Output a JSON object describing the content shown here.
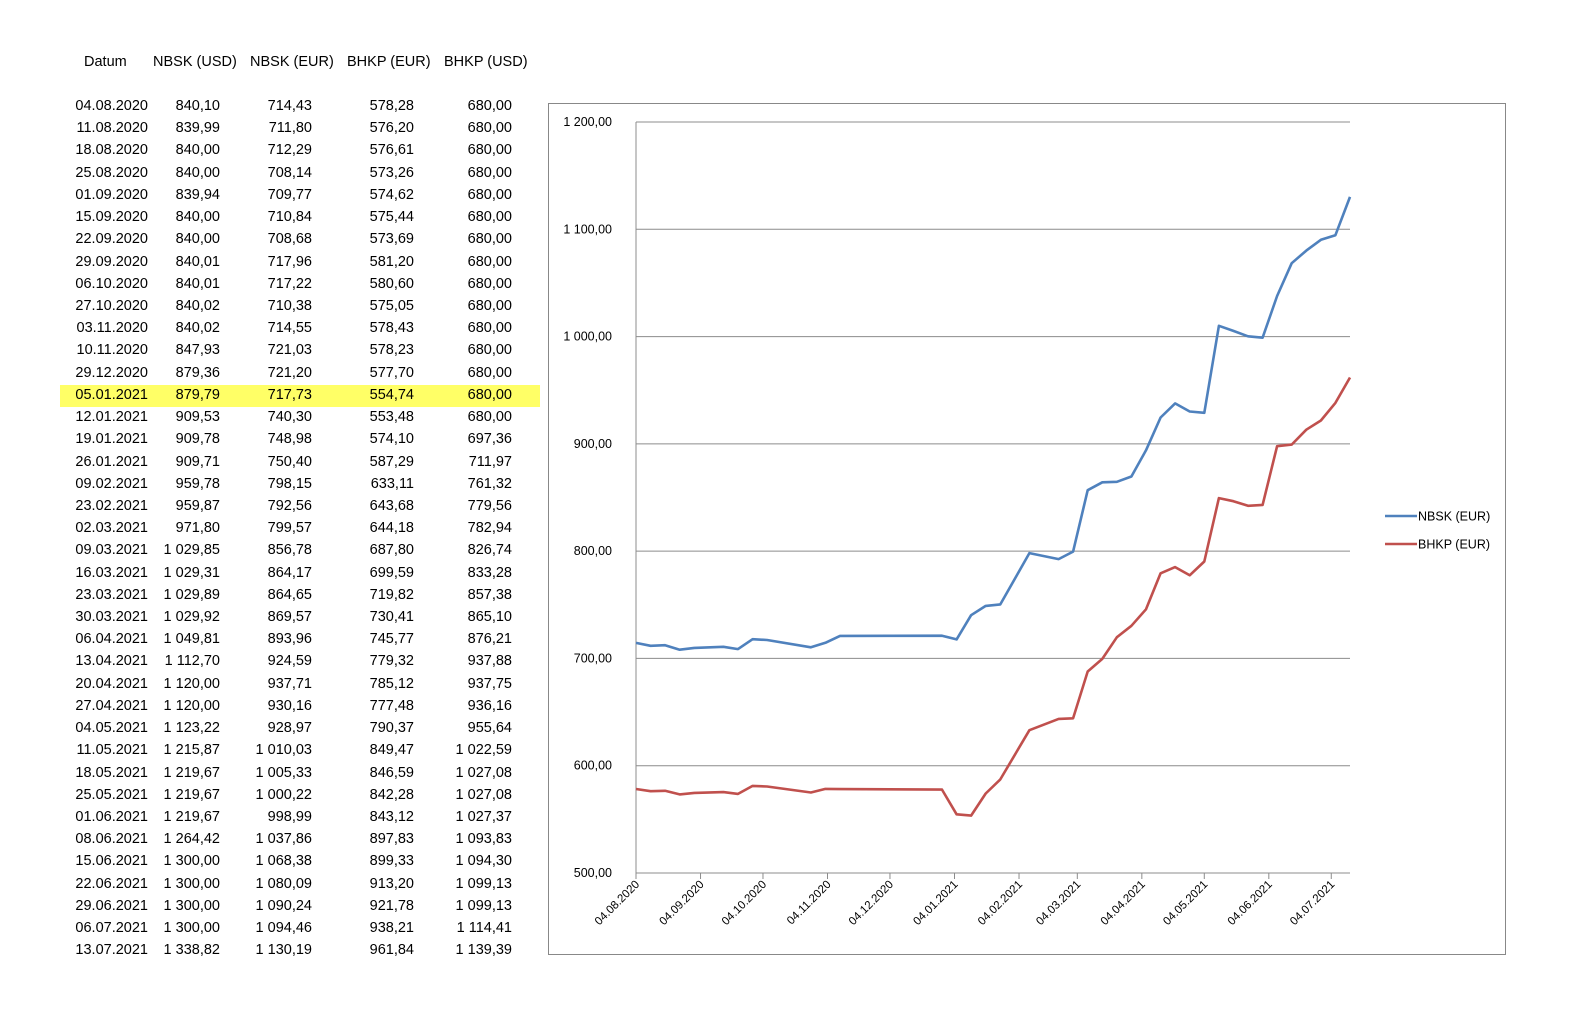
{
  "table": {
    "headers": [
      "Datum",
      "NBSK (USD)",
      "NBSK (EUR)",
      "BHKP (EUR)",
      "BHKP (USD)"
    ],
    "highlight_row": "05.01.2021",
    "rows": [
      [
        "04.08.2020",
        "840,10",
        "714,43",
        "578,28",
        "680,00"
      ],
      [
        "11.08.2020",
        "839,99",
        "711,80",
        "576,20",
        "680,00"
      ],
      [
        "18.08.2020",
        "840,00",
        "712,29",
        "576,61",
        "680,00"
      ],
      [
        "25.08.2020",
        "840,00",
        "708,14",
        "573,26",
        "680,00"
      ],
      [
        "01.09.2020",
        "839,94",
        "709,77",
        "574,62",
        "680,00"
      ],
      [
        "15.09.2020",
        "840,00",
        "710,84",
        "575,44",
        "680,00"
      ],
      [
        "22.09.2020",
        "840,00",
        "708,68",
        "573,69",
        "680,00"
      ],
      [
        "29.09.2020",
        "840,01",
        "717,96",
        "581,20",
        "680,00"
      ],
      [
        "06.10.2020",
        "840,01",
        "717,22",
        "580,60",
        "680,00"
      ],
      [
        "27.10.2020",
        "840,02",
        "710,38",
        "575,05",
        "680,00"
      ],
      [
        "03.11.2020",
        "840,02",
        "714,55",
        "578,43",
        "680,00"
      ],
      [
        "10.11.2020",
        "847,93",
        "721,03",
        "578,23",
        "680,00"
      ],
      [
        "29.12.2020",
        "879,36",
        "721,20",
        "577,70",
        "680,00"
      ],
      [
        "05.01.2021",
        "879,79",
        "717,73",
        "554,74",
        "680,00"
      ],
      [
        "12.01.2021",
        "909,53",
        "740,30",
        "553,48",
        "680,00"
      ],
      [
        "19.01.2021",
        "909,78",
        "748,98",
        "574,10",
        "697,36"
      ],
      [
        "26.01.2021",
        "909,71",
        "750,40",
        "587,29",
        "711,97"
      ],
      [
        "09.02.2021",
        "959,78",
        "798,15",
        "633,11",
        "761,32"
      ],
      [
        "23.02.2021",
        "959,87",
        "792,56",
        "643,68",
        "779,56"
      ],
      [
        "02.03.2021",
        "971,80",
        "799,57",
        "644,18",
        "782,94"
      ],
      [
        "09.03.2021",
        "1 029,85",
        "856,78",
        "687,80",
        "826,74"
      ],
      [
        "16.03.2021",
        "1 029,31",
        "864,17",
        "699,59",
        "833,28"
      ],
      [
        "23.03.2021",
        "1 029,89",
        "864,65",
        "719,82",
        "857,38"
      ],
      [
        "30.03.2021",
        "1 029,92",
        "869,57",
        "730,41",
        "865,10"
      ],
      [
        "06.04.2021",
        "1 049,81",
        "893,96",
        "745,77",
        "876,21"
      ],
      [
        "13.04.2021",
        "1 112,70",
        "924,59",
        "779,32",
        "937,88"
      ],
      [
        "20.04.2021",
        "1 120,00",
        "937,71",
        "785,12",
        "937,75"
      ],
      [
        "27.04.2021",
        "1 120,00",
        "930,16",
        "777,48",
        "936,16"
      ],
      [
        "04.05.2021",
        "1 123,22",
        "928,97",
        "790,37",
        "955,64"
      ],
      [
        "11.05.2021",
        "1 215,87",
        "1 010,03",
        "849,47",
        "1 022,59"
      ],
      [
        "18.05.2021",
        "1 219,67",
        "1 005,33",
        "846,59",
        "1 027,08"
      ],
      [
        "25.05.2021",
        "1 219,67",
        "1 000,22",
        "842,28",
        "1 027,08"
      ],
      [
        "01.06.2021",
        "1 219,67",
        "998,99",
        "843,12",
        "1 027,37"
      ],
      [
        "08.06.2021",
        "1 264,42",
        "1 037,86",
        "897,83",
        "1 093,83"
      ],
      [
        "15.06.2021",
        "1 300,00",
        "1 068,38",
        "899,33",
        "1 094,30"
      ],
      [
        "22.06.2021",
        "1 300,00",
        "1 080,09",
        "913,20",
        "1 099,13"
      ],
      [
        "29.06.2021",
        "1 300,00",
        "1 090,24",
        "921,78",
        "1 099,13"
      ],
      [
        "06.07.2021",
        "1 300,00",
        "1 094,46",
        "938,21",
        "1 114,41"
      ],
      [
        "13.07.2021",
        "1 338,82",
        "1 130,19",
        "961,84",
        "1 139,39"
      ]
    ]
  },
  "chart_data": {
    "type": "line",
    "x_type": "date",
    "title": "",
    "xlabel": "",
    "ylabel": "",
    "ylim": [
      500,
      1200
    ],
    "yticks": [
      "500,00",
      "600,00",
      "700,00",
      "800,00",
      "900,00",
      "1 000,00",
      "1 100,00",
      "1 200,00"
    ],
    "xlim": [
      "2020-08-04",
      "2021-07-13"
    ],
    "xticks": [
      "04.08.2020",
      "04.09.2020",
      "04.10.2020",
      "04.11.2020",
      "04.12.2020",
      "04.01.2021",
      "04.02.2021",
      "04.03.2021",
      "04.04.2021",
      "04.05.2021",
      "04.06.2021",
      "04.07.2021"
    ],
    "grid": "horizontal",
    "legend": "right",
    "x": [
      "2020-08-04",
      "2020-08-11",
      "2020-08-18",
      "2020-08-25",
      "2020-09-01",
      "2020-09-15",
      "2020-09-22",
      "2020-09-29",
      "2020-10-06",
      "2020-10-27",
      "2020-11-03",
      "2020-11-10",
      "2020-12-29",
      "2021-01-05",
      "2021-01-12",
      "2021-01-19",
      "2021-01-26",
      "2021-02-09",
      "2021-02-23",
      "2021-03-02",
      "2021-03-09",
      "2021-03-16",
      "2021-03-23",
      "2021-03-30",
      "2021-04-06",
      "2021-04-13",
      "2021-04-20",
      "2021-04-27",
      "2021-05-04",
      "2021-05-11",
      "2021-05-18",
      "2021-05-25",
      "2021-06-01",
      "2021-06-08",
      "2021-06-15",
      "2021-06-22",
      "2021-06-29",
      "2021-07-06",
      "2021-07-13"
    ],
    "series": [
      {
        "name": "NBSK (EUR)",
        "color": "#4f81bd",
        "values": [
          714.43,
          711.8,
          712.29,
          708.14,
          709.77,
          710.84,
          708.68,
          717.96,
          717.22,
          710.38,
          714.55,
          721.03,
          721.2,
          717.73,
          740.3,
          748.98,
          750.4,
          798.15,
          792.56,
          799.57,
          856.78,
          864.17,
          864.65,
          869.57,
          893.96,
          924.59,
          937.71,
          930.16,
          928.97,
          1010.03,
          1005.33,
          1000.22,
          998.99,
          1037.86,
          1068.38,
          1080.09,
          1090.24,
          1094.46,
          1130.19
        ]
      },
      {
        "name": "BHKP (EUR)",
        "color": "#c0504d",
        "values": [
          578.28,
          576.2,
          576.61,
          573.26,
          574.62,
          575.44,
          573.69,
          581.2,
          580.6,
          575.05,
          578.43,
          578.23,
          577.7,
          554.74,
          553.48,
          574.1,
          587.29,
          633.11,
          643.68,
          644.18,
          687.8,
          699.59,
          719.82,
          730.41,
          745.77,
          779.32,
          785.12,
          777.48,
          790.37,
          849.47,
          846.59,
          842.28,
          843.12,
          897.83,
          899.33,
          913.2,
          921.78,
          938.21,
          961.84
        ]
      }
    ]
  }
}
